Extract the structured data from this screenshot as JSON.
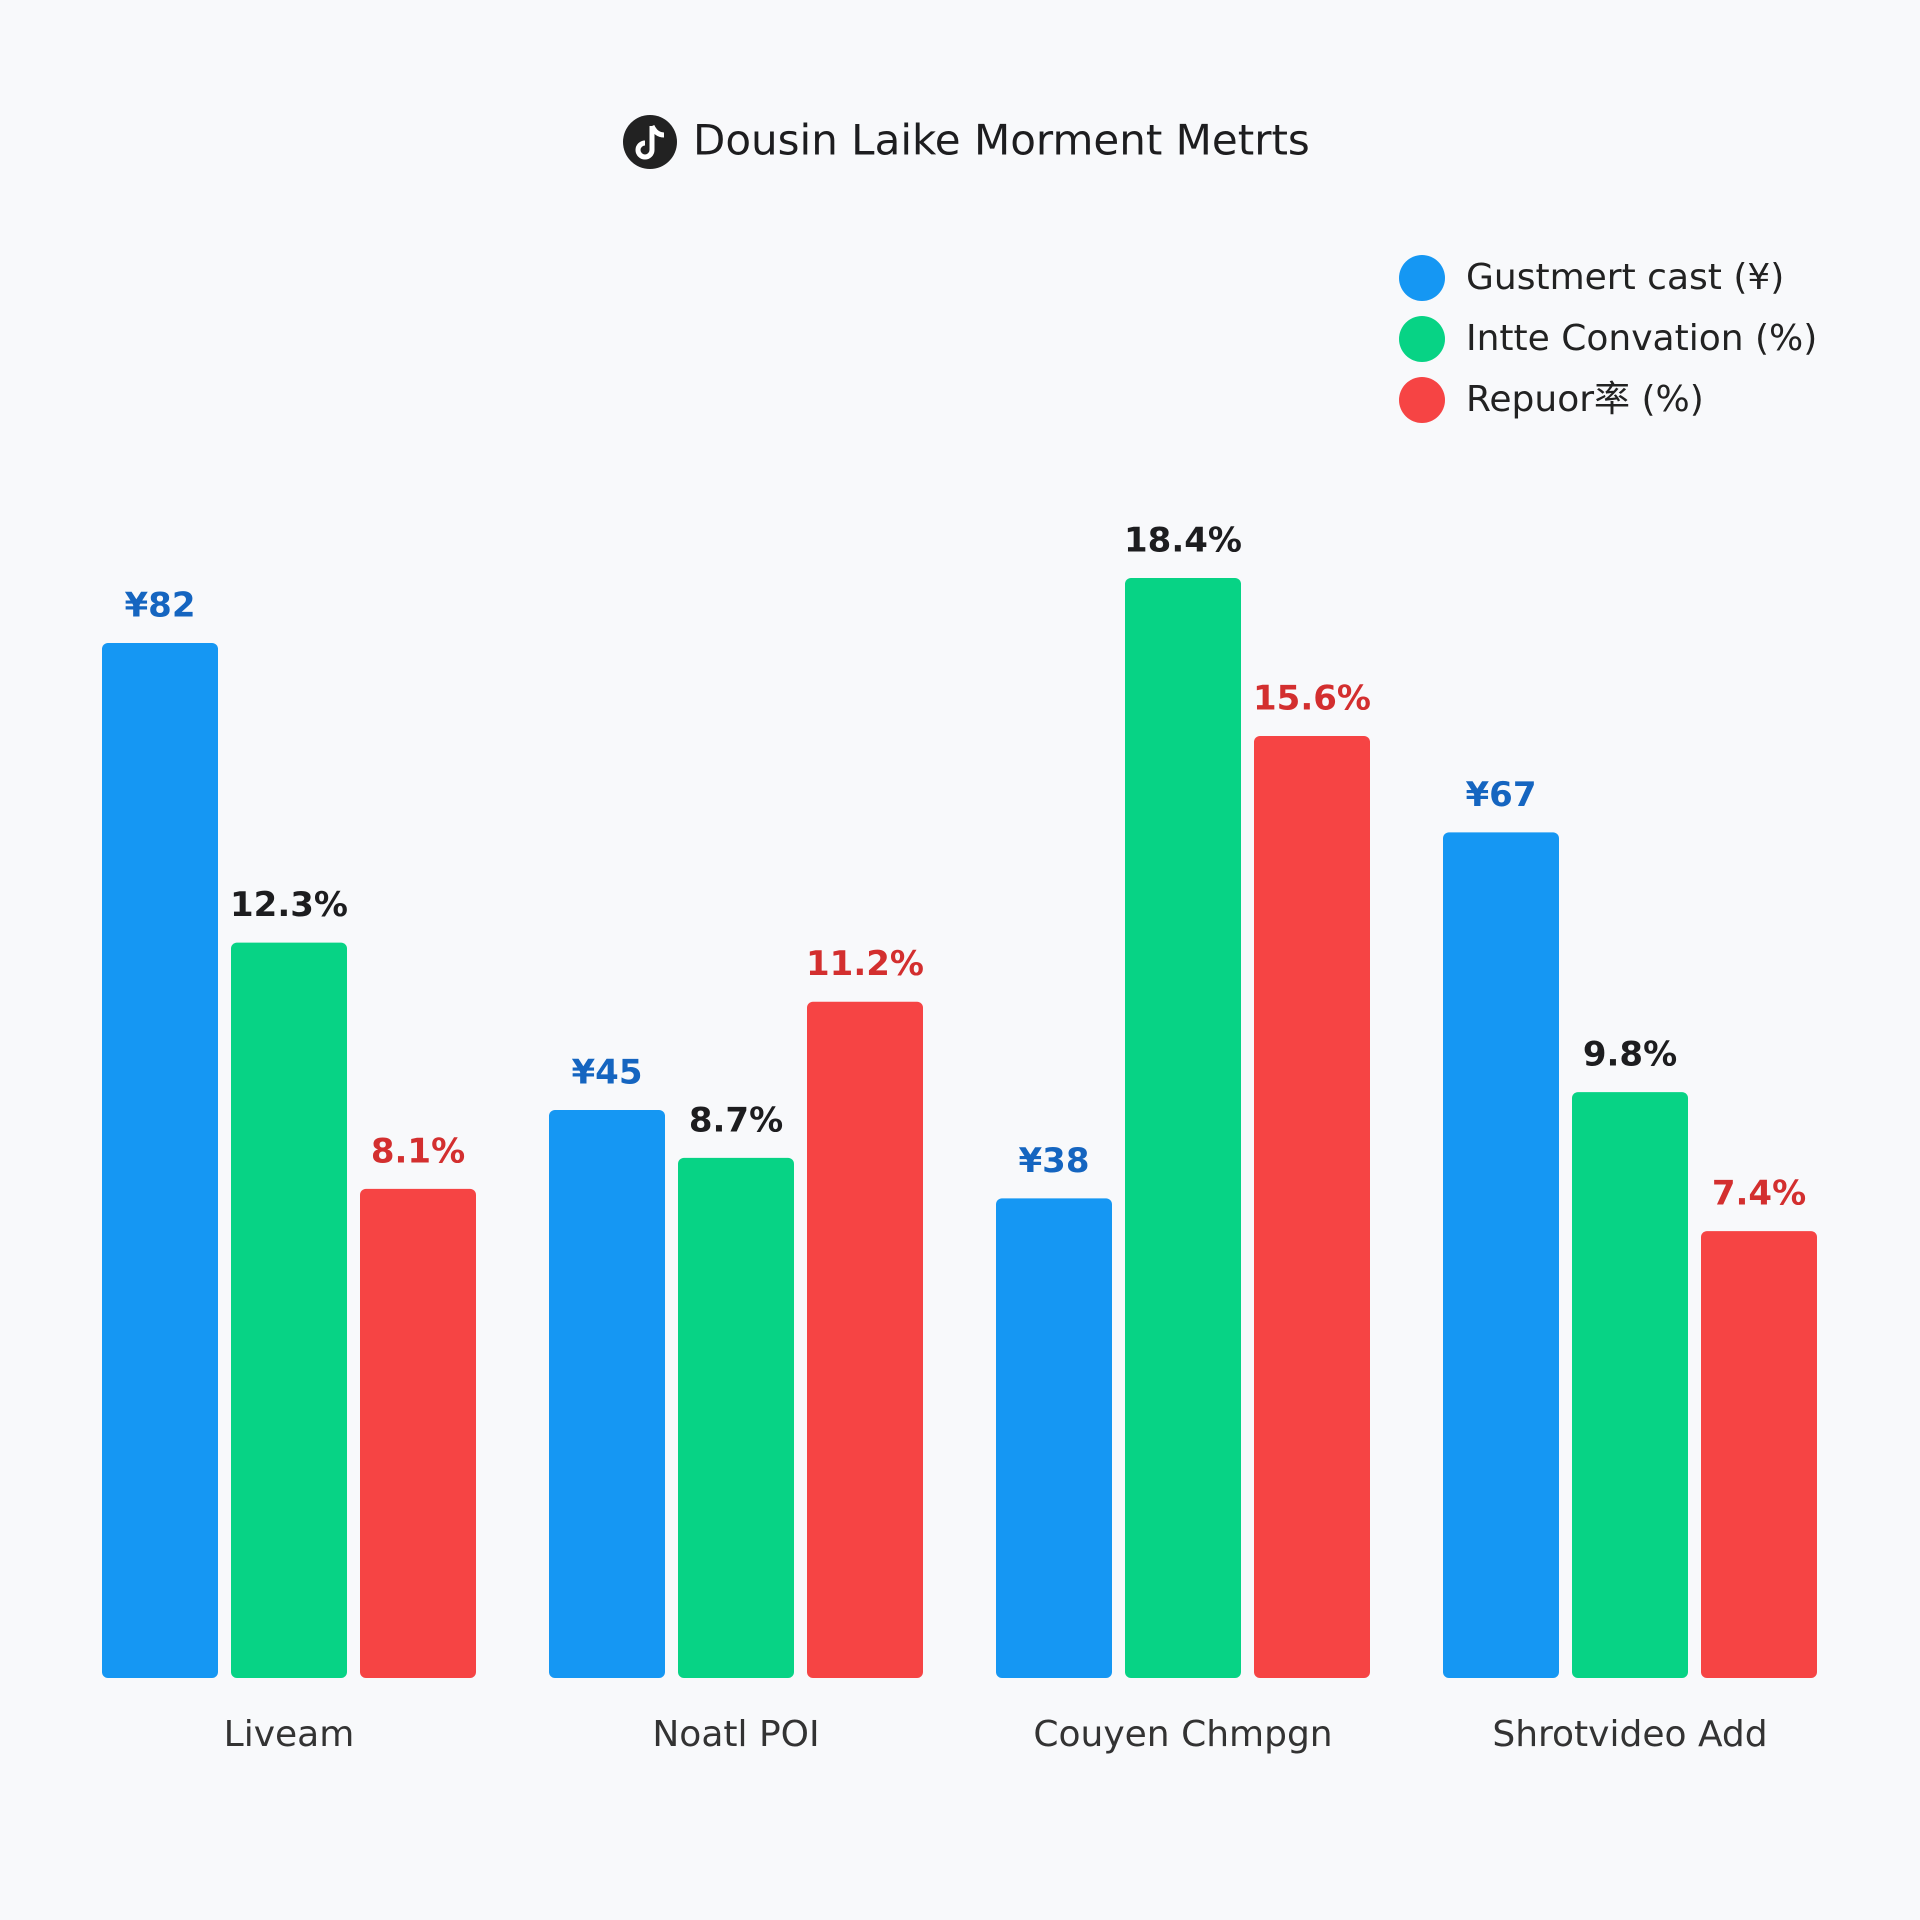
{
  "chart_data": {
    "type": "bar",
    "title": "Dousin Laike Morment Metrts",
    "categories": [
      "Liveam",
      "Noatl POI",
      "Couyen Chmpgn",
      "Shrotvideo Add"
    ],
    "series": [
      {
        "name": "Gustmert cast (¥)",
        "color": "#1597f3",
        "values": [
          82,
          45,
          38,
          67
        ],
        "value_labels": [
          "¥82",
          "¥45",
          "¥38",
          "¥67"
        ]
      },
      {
        "name": "Intte Convation (%)",
        "color": "#07d385",
        "values": [
          12.3,
          8.7,
          18.4,
          9.8
        ],
        "value_labels": [
          "12.3%",
          "8.7%",
          "18.4%",
          "9.8%"
        ]
      },
      {
        "name": "Repuor率 (%)",
        "color": "#f64444",
        "values": [
          8.1,
          11.2,
          15.6,
          7.4
        ],
        "value_labels": [
          "8.1%",
          "11.2%",
          "15.6%",
          "7.4%"
        ]
      }
    ],
    "legend": "top-right"
  }
}
